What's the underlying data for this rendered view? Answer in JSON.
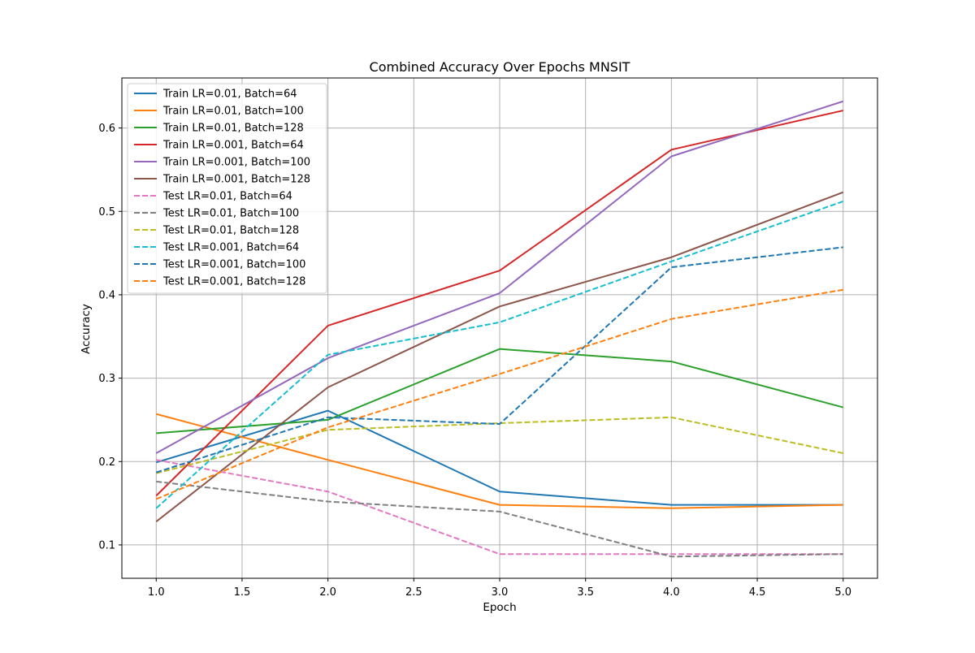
{
  "chart_data": {
    "type": "line",
    "title": "Combined Accuracy Over Epochs MNSIT",
    "xlabel": "Epoch",
    "ylabel": "Accuracy",
    "xlim": [
      0.8,
      5.2
    ],
    "ylim": [
      0.06,
      0.66
    ],
    "xticks": [
      "1.0",
      "1.5",
      "2.0",
      "2.5",
      "3.0",
      "3.5",
      "4.0",
      "4.5",
      "5.0"
    ],
    "yticks": [
      "0.1",
      "0.2",
      "0.3",
      "0.4",
      "0.5",
      "0.6"
    ],
    "grid": true,
    "legend_position": "upper-left",
    "x": [
      1,
      2,
      3,
      4,
      5
    ],
    "series": [
      {
        "name": "Train LR=0.01, Batch=64",
        "color": "#1f77b4",
        "style": "solid",
        "values": [
          0.199,
          0.261,
          0.164,
          0.148,
          0.148
        ]
      },
      {
        "name": "Train LR=0.01, Batch=100",
        "color": "#ff7f0e",
        "style": "solid",
        "values": [
          0.257,
          0.202,
          0.148,
          0.144,
          0.148
        ]
      },
      {
        "name": "Train LR=0.01, Batch=128",
        "color": "#2ca02c",
        "style": "solid",
        "values": [
          0.234,
          0.25,
          0.335,
          0.32,
          0.265
        ]
      },
      {
        "name": "Train LR=0.001, Batch=64",
        "color": "#d62728",
        "style": "solid",
        "values": [
          0.159,
          0.363,
          0.429,
          0.574,
          0.621
        ]
      },
      {
        "name": "Train LR=0.001, Batch=100",
        "color": "#9467bd",
        "style": "solid",
        "values": [
          0.21,
          0.324,
          0.402,
          0.566,
          0.632
        ]
      },
      {
        "name": "Train LR=0.001, Batch=128",
        "color": "#8c564b",
        "style": "solid",
        "values": [
          0.128,
          0.289,
          0.386,
          0.445,
          0.523
        ]
      },
      {
        "name": "Test LR=0.01, Batch=64",
        "color": "#e377c2",
        "style": "dashed",
        "values": [
          0.202,
          0.164,
          0.089,
          0.089,
          0.089
        ]
      },
      {
        "name": "Test LR=0.01, Batch=100",
        "color": "#7f7f7f",
        "style": "dashed",
        "values": [
          0.176,
          0.152,
          0.14,
          0.086,
          0.089
        ]
      },
      {
        "name": "Test LR=0.01, Batch=128",
        "color": "#bcbd22",
        "style": "dashed",
        "values": [
          0.186,
          0.238,
          0.246,
          0.253,
          0.21
        ]
      },
      {
        "name": "Test LR=0.001, Batch=64",
        "color": "#17becf",
        "style": "dashed",
        "values": [
          0.144,
          0.328,
          0.367,
          0.44,
          0.512
        ]
      },
      {
        "name": "Test LR=0.001, Batch=100",
        "color": "#1f77b4",
        "style": "dashed",
        "values": [
          0.187,
          0.253,
          0.245,
          0.433,
          0.457
        ]
      },
      {
        "name": "Test LR=0.001, Batch=128",
        "color": "#ff7f0e",
        "style": "dashed",
        "values": [
          0.155,
          0.241,
          0.305,
          0.371,
          0.406
        ]
      }
    ]
  }
}
